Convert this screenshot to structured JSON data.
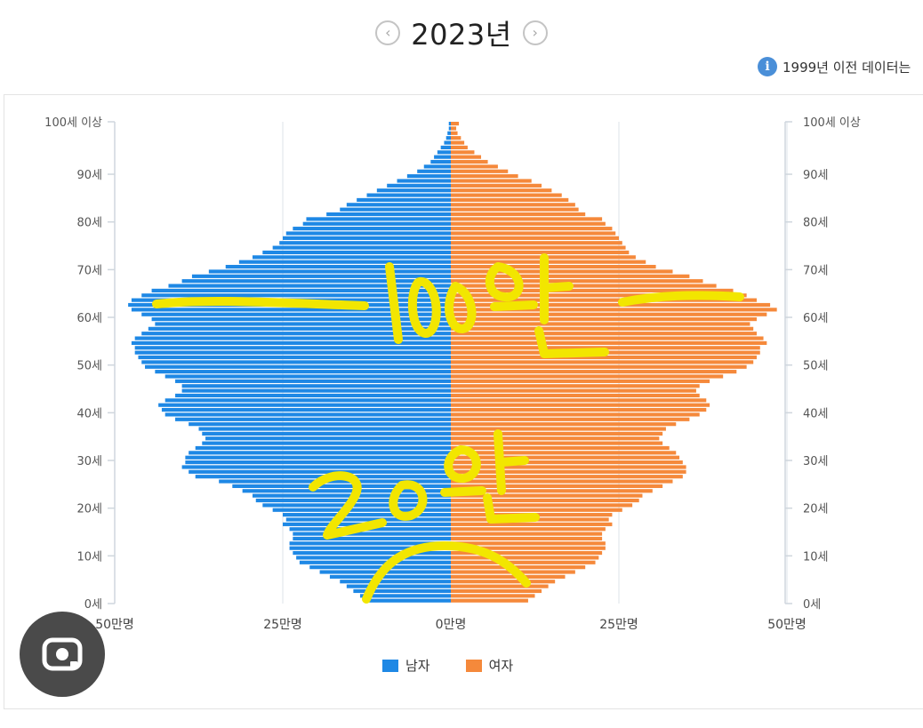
{
  "header": {
    "year_label": "2023년",
    "prev_icon": "chevron-left-icon",
    "next_icon": "chevron-right-icon"
  },
  "notice": {
    "icon": "info-icon",
    "text": "1999년 이전 데이터는"
  },
  "legend": [
    {
      "label": "남자",
      "color": "#1e88e5"
    },
    {
      "label": "여자",
      "color": "#f5893b"
    }
  ],
  "annotations": {
    "upper": "100만",
    "lower": "20만",
    "color": "#f2e600"
  },
  "lens_icon": "google-lens-icon",
  "chart_data": {
    "type": "bar",
    "orientation": "horizontal-population-pyramid",
    "x_ticks_left": [
      "50만명",
      "25만명"
    ],
    "x_tick_center": "0만명",
    "x_ticks_right": [
      "25만명",
      "50만명"
    ],
    "xlim": [
      -50,
      50
    ],
    "x_unit": "만명",
    "y_tick_labels": [
      "0세",
      "10세",
      "20세",
      "30세",
      "40세",
      "50세",
      "60세",
      "70세",
      "80세",
      "90세",
      "100세 이상"
    ],
    "grid": "vertical",
    "categories_note": "ages 0 to 100+ in single years",
    "series": [
      {
        "name": "남자",
        "color": "#1e88e5",
        "values": [
          12.5,
          13.5,
          14.5,
          15.5,
          16.5,
          18,
          19.5,
          21,
          22.5,
          23,
          23.5,
          24,
          24,
          23.5,
          23.5,
          24,
          25,
          24.5,
          25,
          26.5,
          28,
          29,
          29.5,
          31,
          32.5,
          34.5,
          38,
          39,
          40,
          39.5,
          39.5,
          39,
          38,
          37,
          36.5,
          37,
          37.5,
          39,
          41,
          42.5,
          43,
          43.5,
          42.5,
          41,
          40,
          40,
          41,
          42.5,
          44,
          45.5,
          46,
          46.5,
          47,
          47,
          47.5,
          47,
          46,
          45,
          44,
          44.5,
          46,
          47.5,
          48,
          47.5,
          46,
          44.5,
          42,
          40,
          38.5,
          36,
          33.5,
          31.5,
          29.5,
          28,
          26.5,
          25.5,
          25,
          24.5,
          23.5,
          22,
          21.5,
          18.5,
          16.5,
          15.5,
          14,
          12.5,
          11,
          9.5,
          8,
          6.5,
          5,
          4,
          3,
          2.5,
          2,
          1.5,
          1,
          0.7,
          0.5,
          0.3,
          0.3
        ]
      },
      {
        "name": "여자",
        "color": "#f5893b",
        "values": [
          11.5,
          12.5,
          13.5,
          14.5,
          15.5,
          17,
          18.5,
          20,
          21.5,
          22,
          22.5,
          23,
          23,
          22.5,
          22.5,
          23,
          24,
          23.5,
          24,
          25.5,
          27,
          28,
          28.5,
          30,
          31.5,
          33,
          34.5,
          35,
          35,
          34.5,
          34,
          33.5,
          32.5,
          31.5,
          31,
          31.5,
          32,
          33.5,
          35.5,
          37,
          38,
          38.5,
          38,
          37,
          36.5,
          37,
          38.5,
          40.5,
          42.5,
          44,
          45,
          45.5,
          46,
          46,
          47,
          46.5,
          45.5,
          45,
          44.5,
          45.5,
          47,
          48.5,
          47.5,
          45.5,
          44,
          42,
          39.5,
          37.5,
          35.5,
          33,
          30.5,
          29,
          27.5,
          26.5,
          26,
          25.5,
          25,
          24.5,
          24,
          23,
          22.5,
          20,
          19,
          18.5,
          17.5,
          16.5,
          15,
          13.5,
          12,
          10,
          8.5,
          7,
          5.5,
          4.5,
          3.5,
          2.5,
          2,
          1.5,
          1,
          0.8,
          1.2
        ]
      }
    ]
  }
}
